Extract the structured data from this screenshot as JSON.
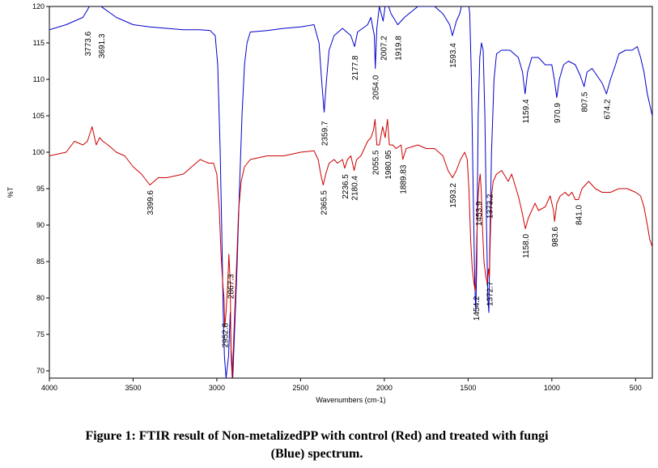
{
  "figure": {
    "caption_line1": "Figure 1: FTIR result of Non-metalizedPP with control (Red) and treated with fungi",
    "caption_line2": "(Blue) spectrum."
  },
  "chart_data": {
    "type": "line",
    "xlabel": "Wavenumbers (cm-1)",
    "ylabel": "%T",
    "xlim": [
      4000,
      400
    ],
    "ylim": [
      69,
      120
    ],
    "x_reversed": true,
    "grid": false,
    "x_ticks": [
      4000,
      3500,
      3000,
      2500,
      2000,
      1500,
      1000,
      500
    ],
    "y_ticks": [
      70,
      75,
      80,
      85,
      90,
      95,
      100,
      105,
      110,
      115,
      120
    ],
    "series": [
      {
        "name": "Blue",
        "color": "#0000cc",
        "points": [
          [
            4000,
            116.8
          ],
          [
            3900,
            117.5
          ],
          [
            3800,
            118.5
          ],
          [
            3773.6,
            119.5
          ],
          [
            3740,
            121
          ],
          [
            3691.3,
            120
          ],
          [
            3600,
            118.5
          ],
          [
            3500,
            117.5
          ],
          [
            3400,
            117.2
          ],
          [
            3300,
            117
          ],
          [
            3200,
            116.8
          ],
          [
            3100,
            116.8
          ],
          [
            3040,
            116.7
          ],
          [
            3010,
            116
          ],
          [
            2995,
            112
          ],
          [
            2980,
            100
          ],
          [
            2970,
            88
          ],
          [
            2962,
            78
          ],
          [
            2955,
            72
          ],
          [
            2945,
            69
          ],
          [
            2930,
            72
          ],
          [
            2920,
            78
          ],
          [
            2915,
            73
          ],
          [
            2905,
            69
          ],
          [
            2895,
            75
          ],
          [
            2880,
            84
          ],
          [
            2865,
            95
          ],
          [
            2850,
            105
          ],
          [
            2835,
            112
          ],
          [
            2820,
            115
          ],
          [
            2800,
            116.5
          ],
          [
            2700,
            116.7
          ],
          [
            2600,
            117
          ],
          [
            2500,
            117.2
          ],
          [
            2420,
            117.5
          ],
          [
            2390,
            115
          ],
          [
            2375,
            110
          ],
          [
            2359.7,
            105.5
          ],
          [
            2345,
            110
          ],
          [
            2330,
            114
          ],
          [
            2300,
            116
          ],
          [
            2250,
            117
          ],
          [
            2200,
            116
          ],
          [
            2177.8,
            114.5
          ],
          [
            2160,
            116.5
          ],
          [
            2100,
            117.5
          ],
          [
            2080,
            118.5
          ],
          [
            2060,
            116
          ],
          [
            2054.0,
            111.5
          ],
          [
            2045,
            117
          ],
          [
            2030,
            120
          ],
          [
            2007.2,
            118
          ],
          [
            1990,
            121
          ],
          [
            1960,
            119
          ],
          [
            1919.8,
            117.5
          ],
          [
            1880,
            118.5
          ],
          [
            1800,
            120
          ],
          [
            1700,
            120
          ],
          [
            1650,
            119
          ],
          [
            1610,
            117.5
          ],
          [
            1593.4,
            116
          ],
          [
            1570,
            118
          ],
          [
            1550,
            119
          ],
          [
            1530,
            121
          ],
          [
            1500,
            121
          ],
          [
            1490,
            119
          ],
          [
            1480,
            110
          ],
          [
            1470,
            95
          ],
          [
            1460,
            82
          ],
          [
            1454,
            78
          ],
          [
            1448,
            85
          ],
          [
            1440,
            105
          ],
          [
            1430,
            113
          ],
          [
            1420,
            115
          ],
          [
            1410,
            114
          ],
          [
            1400,
            105
          ],
          [
            1390,
            90
          ],
          [
            1382,
            80
          ],
          [
            1376,
            78
          ],
          [
            1370,
            88
          ],
          [
            1360,
            100
          ],
          [
            1345,
            110
          ],
          [
            1330,
            113.5
          ],
          [
            1300,
            114
          ],
          [
            1250,
            114
          ],
          [
            1200,
            113
          ],
          [
            1175,
            111
          ],
          [
            1159.4,
            108
          ],
          [
            1145,
            111
          ],
          [
            1120,
            113
          ],
          [
            1080,
            113
          ],
          [
            1040,
            112
          ],
          [
            1000,
            112
          ],
          [
            985,
            110
          ],
          [
            970.9,
            107.5
          ],
          [
            955,
            110
          ],
          [
            930,
            112
          ],
          [
            900,
            112.5
          ],
          [
            860,
            112
          ],
          [
            830,
            110.5
          ],
          [
            807.5,
            109
          ],
          [
            790,
            111
          ],
          [
            760,
            111.5
          ],
          [
            730,
            110.5
          ],
          [
            700,
            109.5
          ],
          [
            674.2,
            108
          ],
          [
            650,
            110
          ],
          [
            620,
            112
          ],
          [
            600,
            113.5
          ],
          [
            560,
            114
          ],
          [
            520,
            114
          ],
          [
            490,
            114.5
          ],
          [
            470,
            113
          ],
          [
            450,
            111
          ],
          [
            430,
            108
          ],
          [
            410,
            106
          ],
          [
            400,
            105
          ]
        ]
      },
      {
        "name": "Red",
        "color": "#cc0000",
        "points": [
          [
            4000,
            99.5
          ],
          [
            3900,
            100
          ],
          [
            3850,
            101.5
          ],
          [
            3800,
            101
          ],
          [
            3773,
            101.5
          ],
          [
            3745,
            103.5
          ],
          [
            3720,
            101
          ],
          [
            3700,
            102
          ],
          [
            3680,
            101.5
          ],
          [
            3650,
            101
          ],
          [
            3600,
            100
          ],
          [
            3550,
            99.5
          ],
          [
            3500,
            98
          ],
          [
            3450,
            97
          ],
          [
            3399.6,
            95.5
          ],
          [
            3350,
            96.5
          ],
          [
            3300,
            96.5
          ],
          [
            3200,
            97
          ],
          [
            3150,
            98
          ],
          [
            3100,
            99
          ],
          [
            3050,
            98.5
          ],
          [
            3020,
            98.5
          ],
          [
            3000,
            97
          ],
          [
            2985,
            92
          ],
          [
            2975,
            86
          ],
          [
            2965,
            82
          ],
          [
            2957,
            80
          ],
          [
            2952.8,
            76
          ],
          [
            2945,
            78
          ],
          [
            2935,
            82
          ],
          [
            2928,
            86
          ],
          [
            2920,
            82
          ],
          [
            2915,
            72
          ],
          [
            2908,
            69
          ],
          [
            2900,
            74
          ],
          [
            2890,
            80
          ],
          [
            2880,
            86
          ],
          [
            2870,
            92
          ],
          [
            2855,
            96
          ],
          [
            2835,
            98
          ],
          [
            2800,
            99
          ],
          [
            2700,
            99.5
          ],
          [
            2600,
            99.5
          ],
          [
            2500,
            100
          ],
          [
            2420,
            100.2
          ],
          [
            2395,
            99
          ],
          [
            2380,
            97
          ],
          [
            2365.5,
            95.5
          ],
          [
            2350,
            97
          ],
          [
            2330,
            98.5
          ],
          [
            2300,
            99
          ],
          [
            2280,
            98.5
          ],
          [
            2250,
            99
          ],
          [
            2236.5,
            97.8
          ],
          [
            2220,
            99
          ],
          [
            2200,
            99.5
          ],
          [
            2180.4,
            97.5
          ],
          [
            2165,
            99
          ],
          [
            2140,
            99.5
          ],
          [
            2100,
            101.5
          ],
          [
            2080,
            102
          ],
          [
            2065,
            103
          ],
          [
            2055.5,
            104.5
          ],
          [
            2045,
            101
          ],
          [
            2030,
            101
          ],
          [
            2010,
            103.5
          ],
          [
            1995,
            102
          ],
          [
            1980.95,
            104.5
          ],
          [
            1970,
            101
          ],
          [
            1950,
            101
          ],
          [
            1930,
            100.5
          ],
          [
            1900,
            101
          ],
          [
            1889.8,
            99
          ],
          [
            1870,
            100.5
          ],
          [
            1800,
            101
          ],
          [
            1750,
            100.5
          ],
          [
            1700,
            100.5
          ],
          [
            1650,
            99.5
          ],
          [
            1620,
            97.5
          ],
          [
            1593.2,
            96.5
          ],
          [
            1570,
            97.5
          ],
          [
            1545,
            99
          ],
          [
            1520,
            100
          ],
          [
            1505,
            99
          ],
          [
            1495,
            95
          ],
          [
            1485,
            88
          ],
          [
            1475,
            84
          ],
          [
            1465,
            82
          ],
          [
            1458,
            81
          ],
          [
            1454.2,
            82
          ],
          [
            1448,
            88
          ],
          [
            1440,
            94
          ],
          [
            1433,
            96
          ],
          [
            1428,
            97
          ],
          [
            1422,
            95
          ],
          [
            1415,
            90
          ],
          [
            1405,
            85
          ],
          [
            1395,
            83
          ],
          [
            1385,
            82
          ],
          [
            1378,
            84
          ],
          [
            1372.7,
            83
          ],
          [
            1368,
            88
          ],
          [
            1360,
            94
          ],
          [
            1350,
            96
          ],
          [
            1330,
            97
          ],
          [
            1300,
            97.5
          ],
          [
            1260,
            96
          ],
          [
            1240,
            97
          ],
          [
            1220,
            95.5
          ],
          [
            1200,
            94
          ],
          [
            1180,
            92
          ],
          [
            1158.0,
            89.5
          ],
          [
            1140,
            91
          ],
          [
            1120,
            92
          ],
          [
            1100,
            93
          ],
          [
            1080,
            92
          ],
          [
            1040,
            92.5
          ],
          [
            1010,
            94
          ],
          [
            990,
            92
          ],
          [
            983.6,
            90.5
          ],
          [
            970,
            93
          ],
          [
            950,
            94
          ],
          [
            920,
            94.5
          ],
          [
            900,
            94
          ],
          [
            880,
            94.5
          ],
          [
            860,
            93.5
          ],
          [
            841.0,
            93.5
          ],
          [
            820,
            95
          ],
          [
            800,
            95.5
          ],
          [
            780,
            96
          ],
          [
            760,
            95.5
          ],
          [
            740,
            95
          ],
          [
            700,
            94.5
          ],
          [
            650,
            94.5
          ],
          [
            600,
            95
          ],
          [
            550,
            95
          ],
          [
            500,
            94.5
          ],
          [
            470,
            94
          ],
          [
            450,
            92.5
          ],
          [
            430,
            90
          ],
          [
            415,
            88
          ],
          [
            400,
            87
          ]
        ]
      }
    ],
    "annotations": [
      {
        "text": "3773.6",
        "x": 3773.6,
        "y": 116.8,
        "series": "Blue"
      },
      {
        "text": "3691.3",
        "x": 3691.3,
        "y": 116.5,
        "series": "Blue"
      },
      {
        "text": "2359.7",
        "x": 2359.7,
        "y": 104.5,
        "series": "Blue"
      },
      {
        "text": "2177.8",
        "x": 2177.8,
        "y": 113.5,
        "series": "Blue"
      },
      {
        "text": "2054.0",
        "x": 2054.0,
        "y": 110.8,
        "series": "Blue"
      },
      {
        "text": "2007.2",
        "x": 2007.2,
        "y": 116.2,
        "series": "Blue"
      },
      {
        "text": "1919.8",
        "x": 1919.8,
        "y": 116.2,
        "series": "Blue"
      },
      {
        "text": "1593.4",
        "x": 1593.4,
        "y": 115.2,
        "series": "Blue"
      },
      {
        "text": "1159.4",
        "x": 1159.4,
        "y": 107.5,
        "series": "Blue"
      },
      {
        "text": "970.9",
        "x": 970.9,
        "y": 107,
        "series": "Blue"
      },
      {
        "text": "807.5",
        "x": 807.5,
        "y": 108.5,
        "series": "Blue"
      },
      {
        "text": "674.2",
        "x": 674.2,
        "y": 107.5,
        "series": "Blue"
      },
      {
        "text": "3399.6",
        "x": 3399.6,
        "y": 95.0,
        "series": "Red"
      },
      {
        "text": "2952.8",
        "x": 2952.8,
        "y": 76.8,
        "series": "Red"
      },
      {
        "text": "2867.3",
        "x": 2920,
        "y": 83.5,
        "series": "Red"
      },
      {
        "text": "2365.5",
        "x": 2365.5,
        "y": 95.0,
        "series": "Red"
      },
      {
        "text": "2236.5",
        "x": 2236.5,
        "y": 97.2,
        "series": "Red"
      },
      {
        "text": "2180.4",
        "x": 2180.4,
        "y": 97.0,
        "series": "Red"
      },
      {
        "text": "2055.5",
        "x": 2055.5,
        "y": 100.5,
        "series": "Red"
      },
      {
        "text": "1980.95",
        "x": 1980.95,
        "y": 100.5,
        "series": "Red"
      },
      {
        "text": "1889.83",
        "x": 1889.83,
        "y": 98.5,
        "series": "Red"
      },
      {
        "text": "1593.2",
        "x": 1593.2,
        "y": 96.0,
        "series": "Red"
      },
      {
        "text": "1453.9",
        "x": 1440,
        "y": 93.5,
        "series": "Red"
      },
      {
        "text": "1454.2",
        "x": 1454.2,
        "y": 80.5,
        "series": "Red"
      },
      {
        "text": "1373.2",
        "x": 1373.2,
        "y": 94.5,
        "series": "Red"
      },
      {
        "text": "1372.7",
        "x": 1372.7,
        "y": 82.5,
        "series": "Red"
      },
      {
        "text": "1158.0",
        "x": 1158.0,
        "y": 89.0,
        "series": "Red"
      },
      {
        "text": "983.6",
        "x": 983.6,
        "y": 90.0,
        "series": "Red"
      },
      {
        "text": "841.0",
        "x": 841.0,
        "y": 93.0,
        "series": "Red"
      }
    ]
  }
}
